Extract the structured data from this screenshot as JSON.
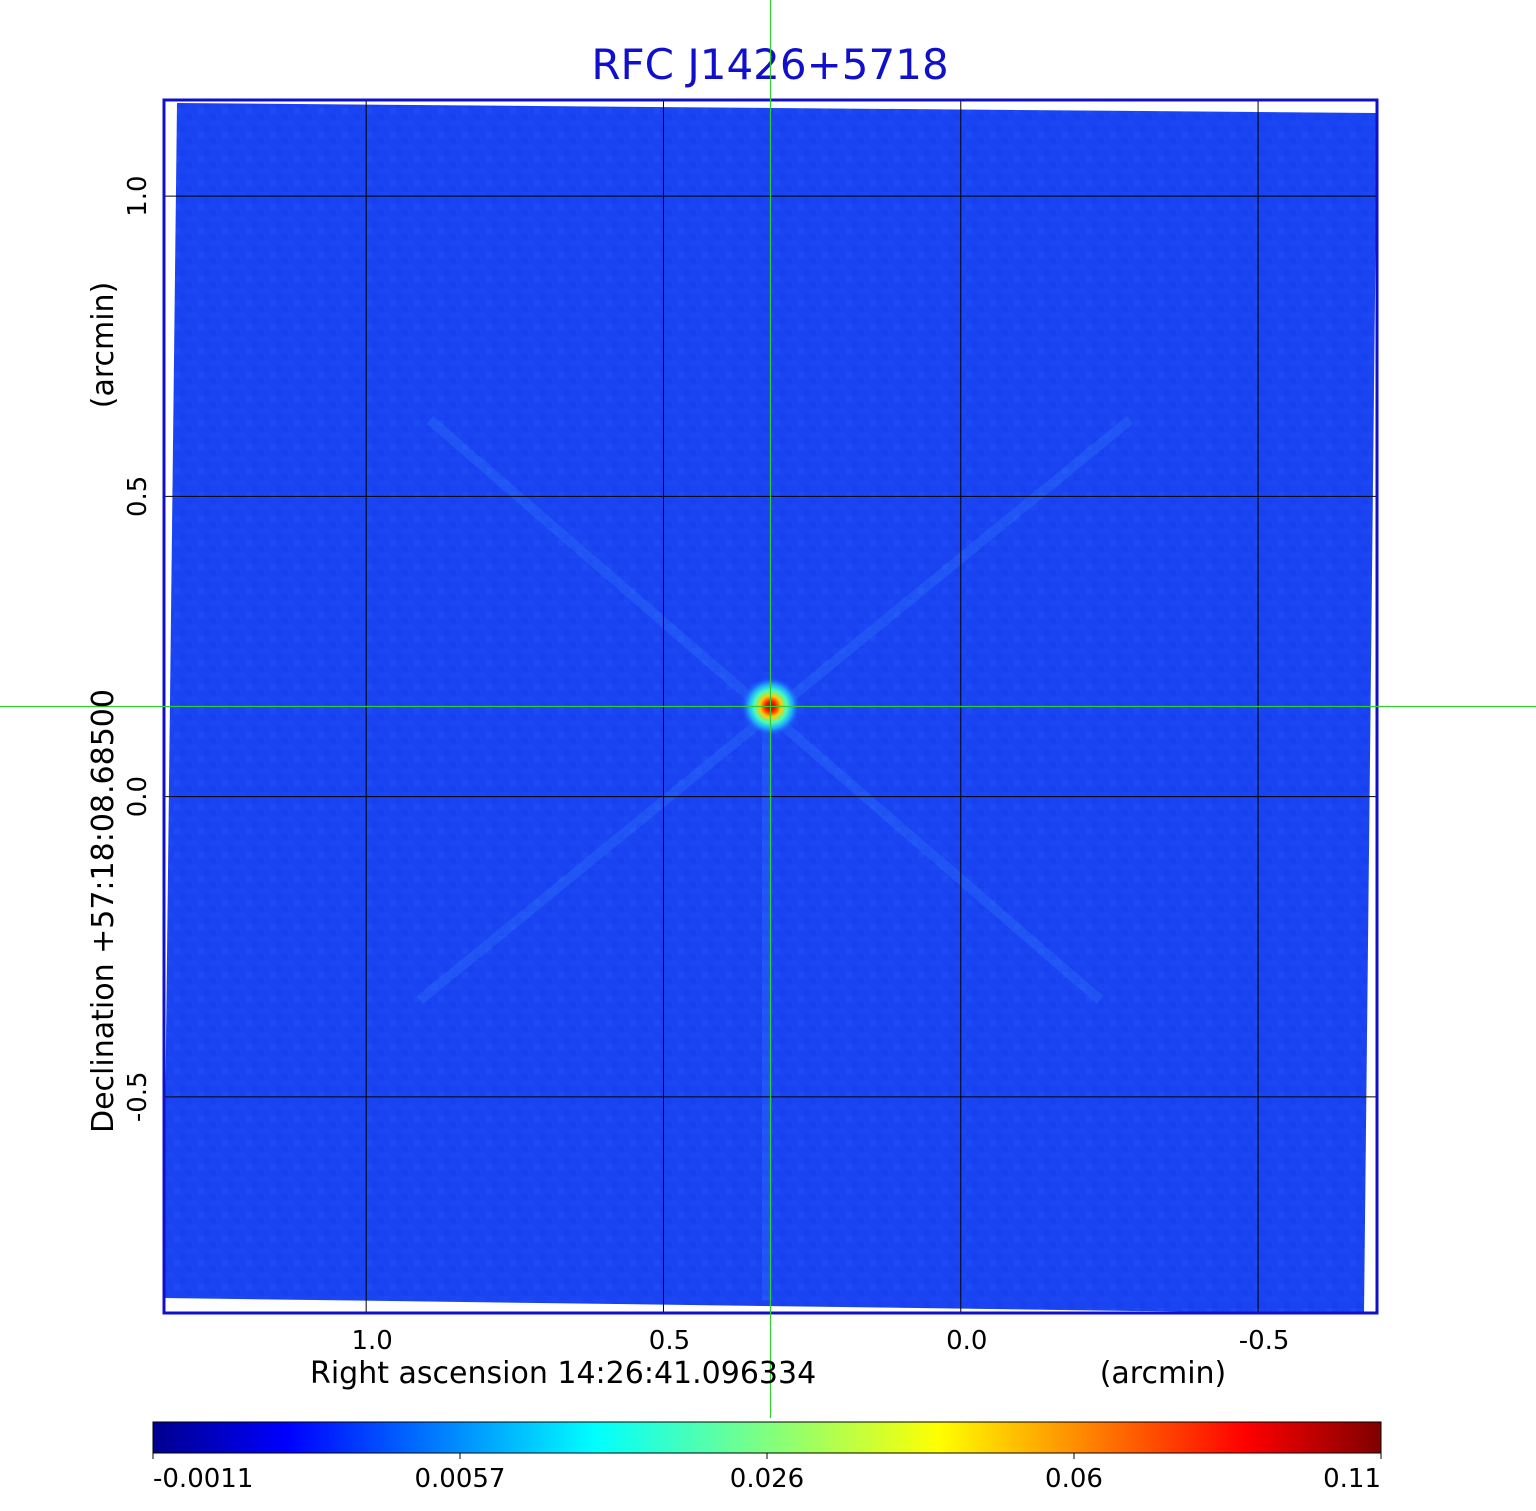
{
  "chart_data": {
    "type": "heatmap",
    "title": "RFC J1426+5718",
    "xlabel": "Right ascension  14:26:41.096334",
    "xunit": "(arcmin)",
    "ylabel": "Declination  +57:18:08.68500",
    "yunit": "(arcmin)",
    "x_axis_direction": "decreasing-right",
    "xlim": [
      1.34,
      -0.7
    ],
    "ylim": [
      -0.86,
      1.16
    ],
    "xticks": [
      1.0,
      0.5,
      0.0,
      -0.5
    ],
    "xtick_labels": [
      "1.0",
      "0.5",
      "0.0",
      "-0.5"
    ],
    "yticks": [
      1.0,
      0.5,
      0.0,
      -0.5
    ],
    "ytick_labels": [
      "1.0",
      "0.5",
      "0.0",
      "-0.5"
    ],
    "grid": true,
    "crosshair": {
      "x": 0.32,
      "y": 0.15,
      "color": "#33cc33"
    },
    "source": {
      "x": 0.32,
      "y": 0.15,
      "peak": 0.11
    },
    "background_level": 0.0,
    "colormap": "jet",
    "colorbar": {
      "orientation": "horizontal",
      "scale": "nonlinear",
      "tick_values": [
        -0.0011,
        0.0057,
        0.026,
        0.06,
        0.11
      ],
      "tick_labels": [
        "-0.0011",
        "0.0057",
        "0.026",
        "0.06",
        "0.11"
      ]
    },
    "colors": {
      "frame": "#1010cc",
      "grid": "#000000",
      "background_field": "#1a44f2"
    }
  }
}
